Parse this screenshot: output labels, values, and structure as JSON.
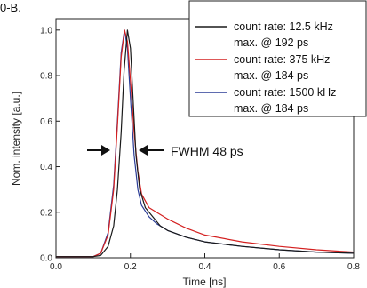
{
  "corner_text": "0-B.",
  "chart_data": {
    "type": "line",
    "xlabel": "Time [ns]",
    "ylabel": "Nom. intensity [a.u.]",
    "xlim": [
      0.0,
      0.8
    ],
    "ylim": [
      0.0,
      1.05
    ],
    "x_ticks": [
      "0.0",
      "0.2",
      "0.4",
      "0.6",
      "0.8"
    ],
    "y_ticks": [
      "0.0",
      "0.2",
      "0.4",
      "0.6",
      "0.8",
      "1.0"
    ],
    "grid": false,
    "legend_position": "top-right",
    "annotation": "FWHM 48 ps",
    "series": [
      {
        "name": "count rate: 12.5 kHz",
        "name_line2": "max. @ 192 ps",
        "color": "#1a1a1a",
        "x": [
          0.0,
          0.1,
          0.12,
          0.14,
          0.155,
          0.165,
          0.175,
          0.183,
          0.192,
          0.2,
          0.207,
          0.215,
          0.225,
          0.24,
          0.26,
          0.28,
          0.3,
          0.35,
          0.4,
          0.5,
          0.6,
          0.7,
          0.8
        ],
        "y": [
          0.005,
          0.005,
          0.01,
          0.05,
          0.14,
          0.3,
          0.55,
          0.82,
          1.0,
          0.92,
          0.7,
          0.45,
          0.3,
          0.22,
          0.18,
          0.14,
          0.12,
          0.09,
          0.07,
          0.05,
          0.035,
          0.025,
          0.02
        ]
      },
      {
        "name": "count rate: 375 kHz",
        "name_line2": "max. @ 184 ps",
        "color": "#d42020",
        "x": [
          0.0,
          0.1,
          0.12,
          0.14,
          0.155,
          0.165,
          0.175,
          0.184,
          0.192,
          0.2,
          0.21,
          0.22,
          0.23,
          0.25,
          0.27,
          0.3,
          0.35,
          0.4,
          0.5,
          0.6,
          0.7,
          0.8
        ],
        "y": [
          0.005,
          0.005,
          0.02,
          0.1,
          0.3,
          0.58,
          0.88,
          1.0,
          0.95,
          0.78,
          0.55,
          0.38,
          0.28,
          0.22,
          0.2,
          0.17,
          0.13,
          0.1,
          0.07,
          0.05,
          0.035,
          0.025
        ]
      },
      {
        "name": "count rate: 1500 kHz",
        "name_line2": "max. @ 184 ps",
        "color": "#2a3c96",
        "x": [
          0.0,
          0.1,
          0.12,
          0.14,
          0.155,
          0.165,
          0.175,
          0.184,
          0.192,
          0.2,
          0.21,
          0.22,
          0.23,
          0.25,
          0.27,
          0.3,
          0.35,
          0.4,
          0.5,
          0.6,
          0.7,
          0.8
        ],
        "y": [
          0.005,
          0.005,
          0.02,
          0.11,
          0.32,
          0.6,
          0.9,
          1.0,
          0.92,
          0.7,
          0.45,
          0.3,
          0.23,
          0.18,
          0.15,
          0.12,
          0.09,
          0.07,
          0.05,
          0.035,
          0.025,
          0.02
        ]
      }
    ]
  }
}
